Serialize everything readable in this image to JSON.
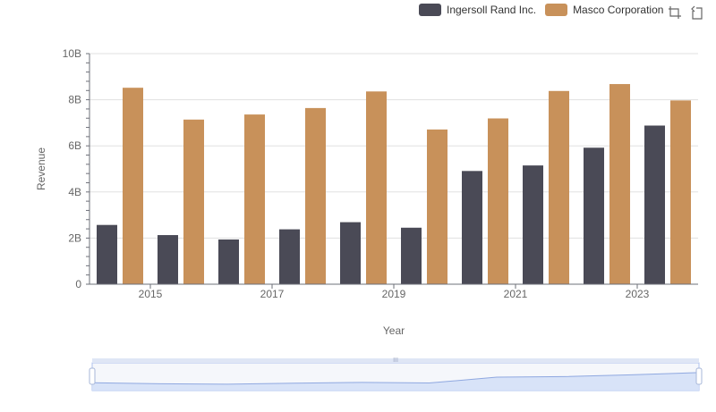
{
  "legend": {
    "series_a": "Ingersoll Rand Inc.",
    "series_b": "Masco Corporation"
  },
  "toolbox": {
    "zoom_icon": "zoom-select-icon",
    "restore_icon": "restore-icon"
  },
  "colors": {
    "series_a": "#4a4a56",
    "series_b": "#c8915a",
    "grid": "#e0e0e0",
    "axis": "#6e7079",
    "slider_fill": "#d5e0f7",
    "slider_border": "#aec2ee"
  },
  "chart_data": {
    "type": "bar",
    "xlabel": "Year",
    "ylabel": "Revenue",
    "ylim": [
      0,
      10000000000
    ],
    "yticks": [
      "0",
      "2B",
      "4B",
      "6B",
      "8B",
      "10B"
    ],
    "xtick_labels": [
      "2015",
      "2017",
      "2019",
      "2021",
      "2023"
    ],
    "categories": [
      "2014",
      "2015",
      "2016",
      "2017",
      "2018",
      "2019",
      "2020",
      "2021",
      "2022",
      "2023"
    ],
    "series": [
      {
        "name": "Ingersoll Rand Inc.",
        "values": [
          2570000000,
          2130000000,
          1940000000,
          2380000000,
          2690000000,
          2450000000,
          4910000000,
          5150000000,
          5920000000,
          6880000000
        ]
      },
      {
        "name": "Masco Corporation",
        "values": [
          8520000000,
          7140000000,
          7360000000,
          7640000000,
          8360000000,
          6710000000,
          7190000000,
          8380000000,
          8680000000,
          7970000000
        ]
      }
    ],
    "grid": true,
    "legend_position": "top-right",
    "data_zoom": true
  }
}
